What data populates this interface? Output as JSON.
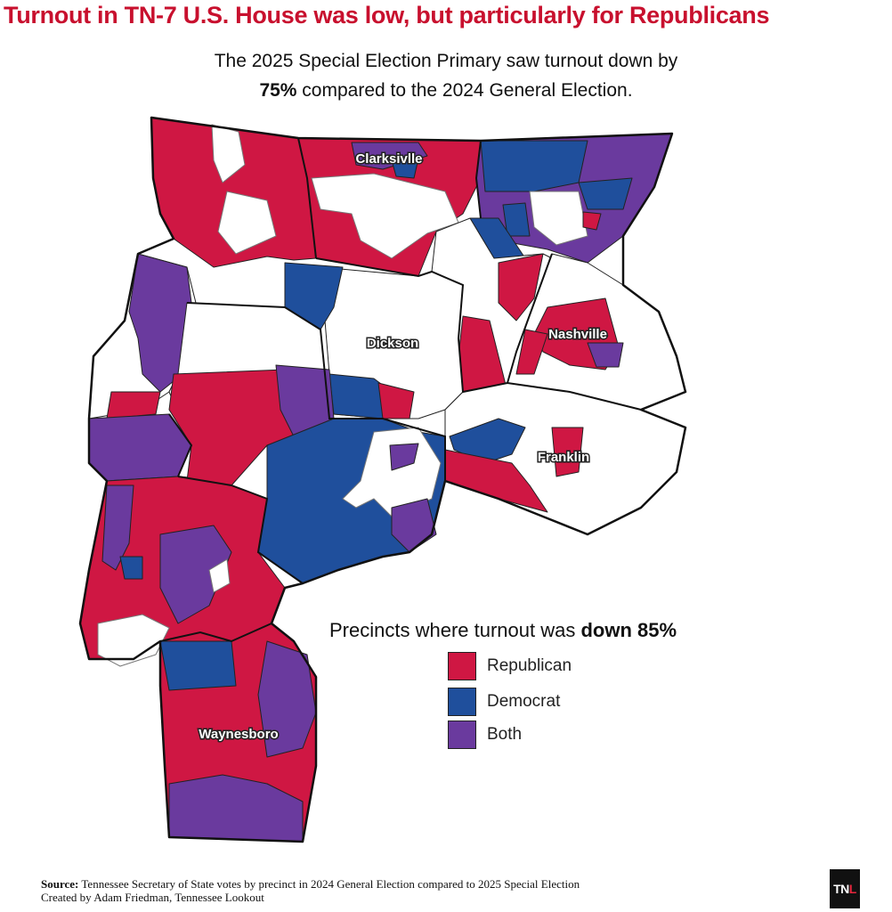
{
  "header": {
    "title": "Turnout in TN-7 U.S. House was low, but particularly for Republicans",
    "subtitle_line1": "The 2025 Special Election Primary saw turnout down by",
    "subtitle_line2_bold": "75%",
    "subtitle_line2_rest": " compared to the 2024 General Election."
  },
  "map": {
    "cities": [
      "Clarksivlle",
      "Dickson",
      "Nashville",
      "Franklin",
      "Waynesboro"
    ]
  },
  "legend": {
    "title_prefix": "Precincts where turnout was ",
    "title_bold": "down 85%",
    "items": [
      {
        "label": "Republican",
        "color": "#cf1743"
      },
      {
        "label": "Democrat",
        "color": "#1f4f9c"
      },
      {
        "label": "Both",
        "color": "#6a3a9e"
      }
    ]
  },
  "footer": {
    "source_label": "Source:",
    "source_text": " Tennessee Secretary of State votes by precinct in 2024 General Election compared to 2025 Special Election",
    "credit": "Created by Adam Friedman, Tennessee Lookout"
  },
  "logo": {
    "t": "TN",
    "l": "L"
  },
  "colors": {
    "republican": "#cf1743",
    "democrat": "#1f4f9c",
    "both": "#6a3a9e",
    "title": "#c8102e"
  }
}
